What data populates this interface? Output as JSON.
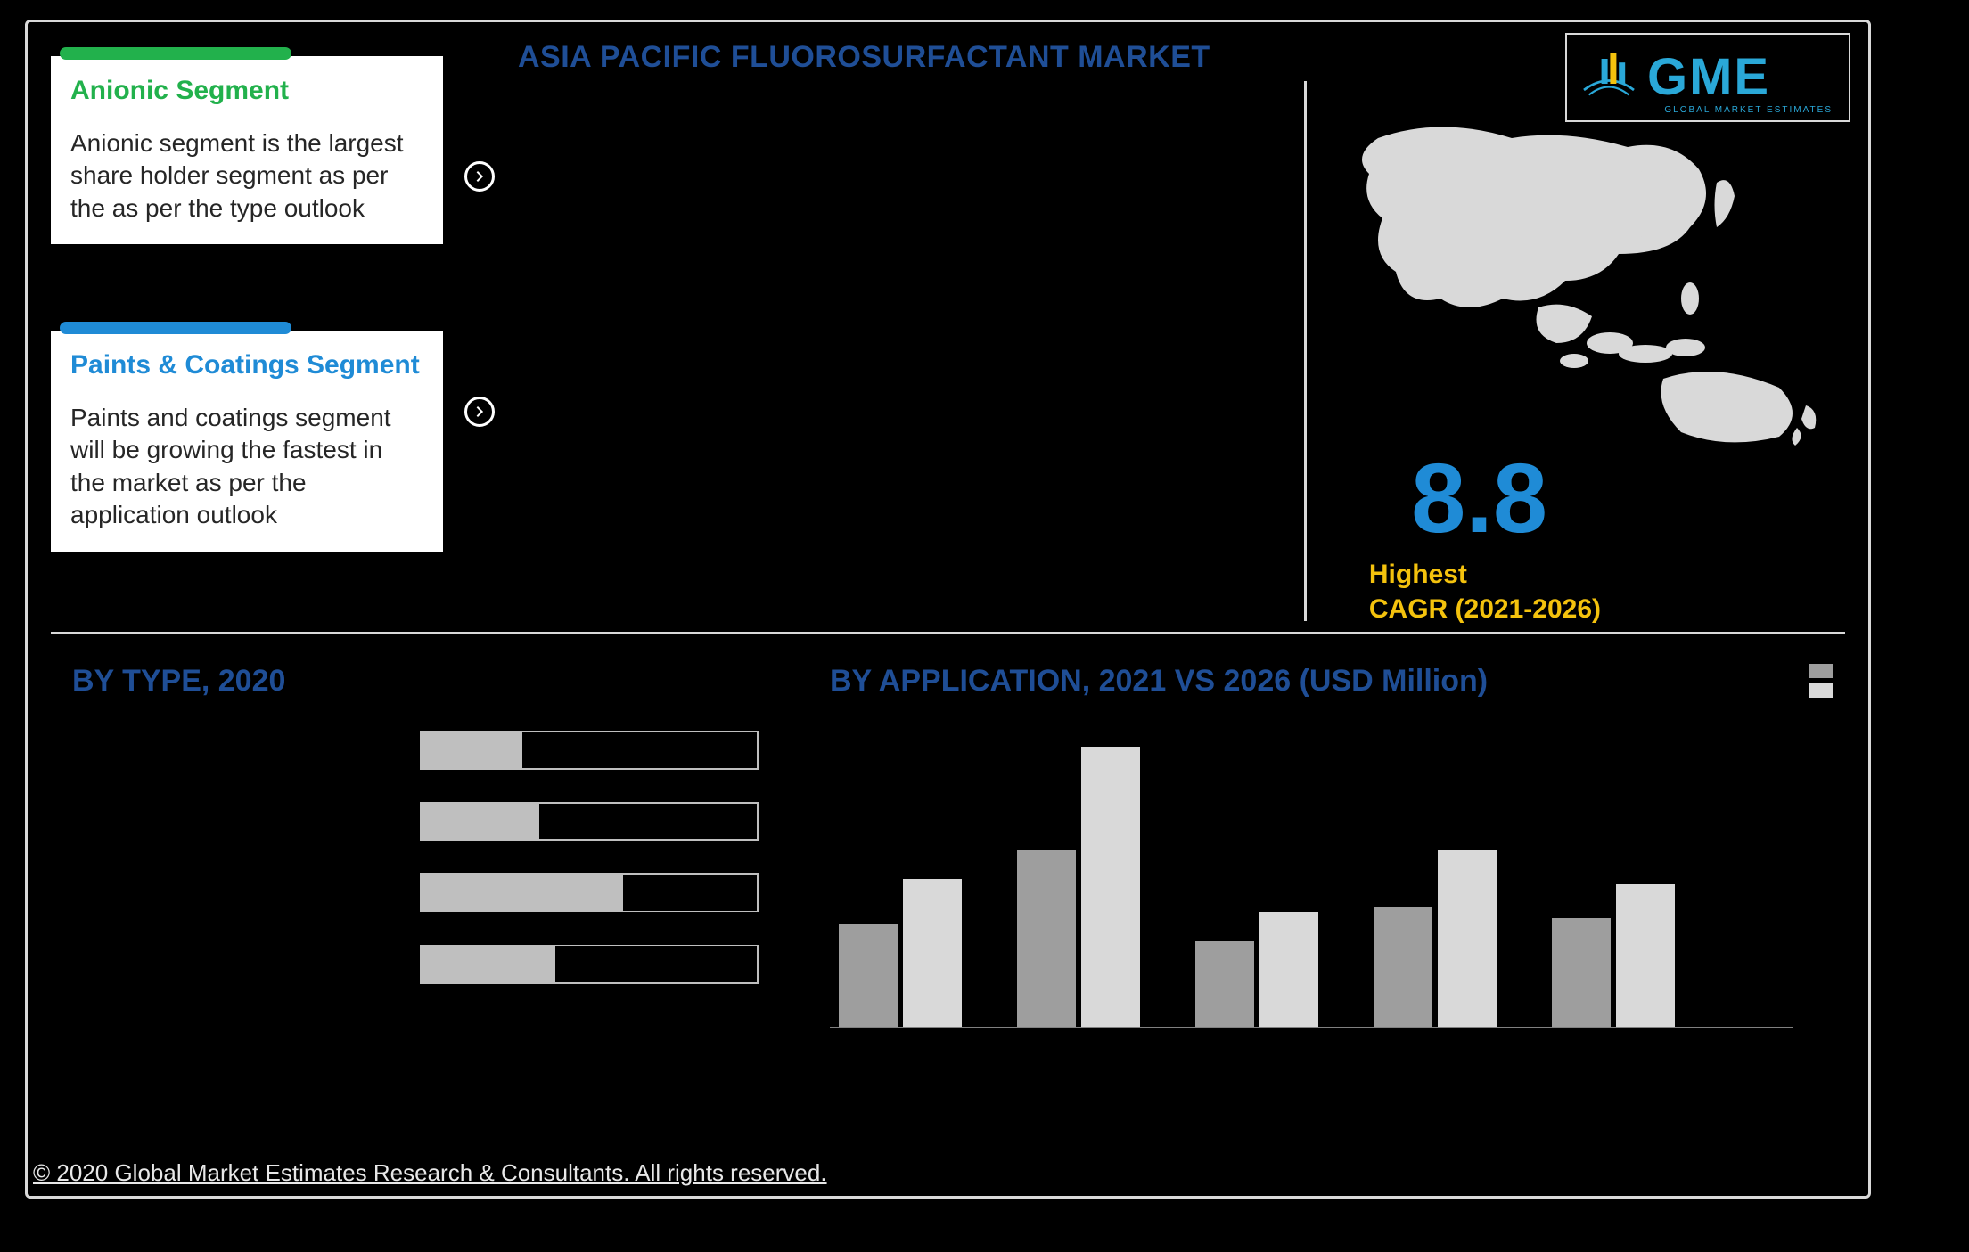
{
  "title": "ASIA PACIFIC FLUOROSURFACTANT MARKET",
  "logo": {
    "text": "GME",
    "sub": "GLOBAL MARKET ESTIMATES"
  },
  "cards": {
    "anionic": {
      "title": "Anionic Segment",
      "body": "Anionic segment is the largest share holder segment as per the as per the type outlook",
      "bar_color": "#22b14c",
      "title_color": "#22b14c"
    },
    "paints": {
      "title": "Paints & Coatings Segment",
      "body": "Paints and coatings segment will be growing the fastest in the market as per the application outlook",
      "bar_color": "#1f8bd6",
      "title_color": "#1f8bd6"
    }
  },
  "cagr": {
    "value": "8.8",
    "label_line1": "Highest",
    "label_line2": "CAGR (2021-2026)",
    "value_color": "#1f8bd6",
    "label_color": "#f4c20d"
  },
  "by_type": {
    "title": "BY TYPE, 2020",
    "type": "bar-horizontal",
    "bar_outline": "#bfbfbf",
    "bar_fill": "#bfbfbf",
    "bar_bg": "#000000",
    "rows": [
      {
        "fill_pct": 30
      },
      {
        "fill_pct": 35
      },
      {
        "fill_pct": 60
      },
      {
        "fill_pct": 40
      }
    ]
  },
  "by_app": {
    "title": "BY APPLICATION, 2021 VS 2026 (USD Million)",
    "type": "grouped-bar",
    "series_colors": {
      "2021": "#9e9e9e",
      "2026": "#d9d9d9"
    },
    "axis_color": "#808080",
    "ymax": 100,
    "groups": [
      {
        "a": 36,
        "b": 52
      },
      {
        "a": 62,
        "b": 98
      },
      {
        "a": 30,
        "b": 40
      },
      {
        "a": 42,
        "b": 62
      },
      {
        "a": 38,
        "b": 50
      }
    ]
  },
  "colors": {
    "background": "#000000",
    "frame_border": "#d9d9d9",
    "heading": "#1f4e96",
    "map_fill": "#d9d9d9"
  },
  "copyright": "© 2020 Global Market Estimates Research & Consultants. All rights reserved."
}
